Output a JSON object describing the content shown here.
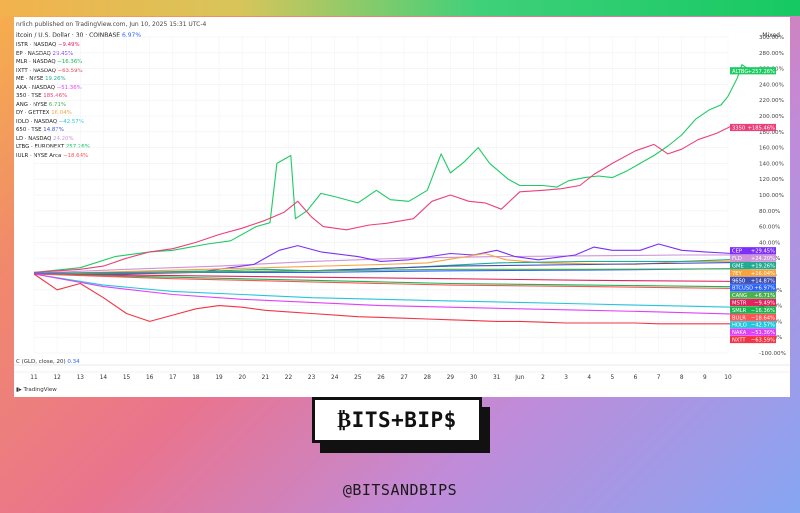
{
  "page": {
    "publisher_line": "nrlich published on TradingView.com, Jun 10, 2025 15:31 UTC-4",
    "main_symbol": "itcoin / U.S. Dollar · 30 · COINBASE",
    "main_symbol_change": "6.97%",
    "scale_mode": "Mixed",
    "oscillator_label": "C (GLD, close, 20)",
    "oscillator_value": "0.34",
    "footer_logo": "TradingView",
    "brand": "₿ITS+BIP$",
    "handle": "@BITSANDBIPS"
  },
  "chart_data": {
    "type": "line",
    "x_ticks": [
      "11",
      "12",
      "13",
      "14",
      "15",
      "16",
      "17",
      "18",
      "19",
      "20",
      "21",
      "22",
      "23",
      "24",
      "25",
      "26",
      "27",
      "28",
      "29",
      "30",
      "31",
      "Jun",
      "2",
      "3",
      "4",
      "5",
      "6",
      "7",
      "8",
      "9",
      "10"
    ],
    "y_ticks": [
      "300.00%",
      "280.00%",
      "260.00%",
      "240.00%",
      "220.00%",
      "200.00%",
      "180.00%",
      "160.00%",
      "140.00%",
      "120.00%",
      "100.00%",
      "80.00%",
      "60.00%",
      "40.00%",
      "20.00%",
      "0.00%",
      "-20.00%",
      "-40.00%",
      "-60.00%",
      "-80.00%",
      "-100.00%"
    ],
    "ylim": [
      -100,
      300
    ],
    "legend": [
      {
        "name": "ISTR · NASDAQ",
        "value": "−9.49%",
        "color": "#e0245e"
      },
      {
        "name": "EP · NASDAQ",
        "value": "29.45%",
        "color": "#7b2ff7"
      },
      {
        "name": "MLR · NASDAQ",
        "value": "−16.36%",
        "color": "#16b84f"
      },
      {
        "name": "IXTT · NASDAQ",
        "value": "−63.59%",
        "color": "#f23645"
      },
      {
        "name": "ME · NYSE",
        "value": "19.26%",
        "color": "#22ab94"
      },
      {
        "name": "AKA · NASDAQ",
        "value": "−51.36%",
        "color": "#e040fb"
      },
      {
        "name": "350 · TSE",
        "value": "185.46%",
        "color": "#ec407a"
      },
      {
        "name": "ANG · NYSE",
        "value": "6.71%",
        "color": "#4caf50"
      },
      {
        "name": "DY · GETTEX",
        "value": "16.04%",
        "color": "#f7a440"
      },
      {
        "name": "IOLO · NASDAQ",
        "value": "−42.57%",
        "color": "#26c6da"
      },
      {
        "name": "650 · TSE",
        "value": "14.87%",
        "color": "#3f51b5"
      },
      {
        "name": "LD · NASDAQ",
        "value": "24.20%",
        "color": "#ce93d8"
      },
      {
        "name": "LTBG · EURONEXT",
        "value": "257.26%",
        "color": "#00c853"
      },
      {
        "name": "IULR · NYSE Arca",
        "value": "−18.64%",
        "color": "#ff5252"
      }
    ],
    "series": [
      {
        "name": "ALTBG",
        "label": "ALTBG",
        "label_value": "+257.26%",
        "color": "#1ecb62",
        "final": 257.26,
        "points": [
          [
            0,
            2
          ],
          [
            2,
            8
          ],
          [
            3.5,
            22
          ],
          [
            5,
            28
          ],
          [
            6,
            30
          ],
          [
            7.5,
            38
          ],
          [
            8.5,
            42
          ],
          [
            9.6,
            60
          ],
          [
            10.2,
            65
          ],
          [
            10.5,
            140
          ],
          [
            11.1,
            150
          ],
          [
            11.3,
            70
          ],
          [
            11.8,
            80
          ],
          [
            12.4,
            102
          ],
          [
            13,
            98
          ],
          [
            14,
            90
          ],
          [
            14.8,
            106
          ],
          [
            15.4,
            94
          ],
          [
            16.2,
            92
          ],
          [
            17,
            106
          ],
          [
            17.6,
            152
          ],
          [
            18,
            128
          ],
          [
            18.6,
            142
          ],
          [
            19.2,
            160
          ],
          [
            19.7,
            140
          ],
          [
            20.5,
            120
          ],
          [
            21,
            112
          ],
          [
            22,
            112
          ],
          [
            22.6,
            110
          ],
          [
            23.1,
            118
          ],
          [
            23.8,
            122
          ],
          [
            24.4,
            124
          ],
          [
            25,
            122
          ],
          [
            25.6,
            130
          ],
          [
            26.2,
            140
          ],
          [
            26.8,
            150
          ],
          [
            27.4,
            162
          ],
          [
            28,
            176
          ],
          [
            28.6,
            196
          ],
          [
            29.2,
            208
          ],
          [
            29.7,
            214
          ],
          [
            30,
            225
          ],
          [
            30.4,
            248
          ],
          [
            30.6,
            265
          ],
          [
            31,
            257.26
          ]
        ]
      },
      {
        "name": "3350",
        "label": "3350",
        "label_value": "+185.46%",
        "color": "#ec407a",
        "final": 185.46,
        "points": [
          [
            0,
            2
          ],
          [
            2,
            6
          ],
          [
            3,
            10
          ],
          [
            4,
            20
          ],
          [
            5,
            28
          ],
          [
            6,
            32
          ],
          [
            7,
            40
          ],
          [
            8,
            50
          ],
          [
            9,
            58
          ],
          [
            10,
            68
          ],
          [
            10.8,
            78
          ],
          [
            11.4,
            92
          ],
          [
            12,
            72
          ],
          [
            12.5,
            60
          ],
          [
            13.5,
            56
          ],
          [
            14.5,
            62
          ],
          [
            15.2,
            64
          ],
          [
            16.4,
            70
          ],
          [
            17.2,
            92
          ],
          [
            18,
            100
          ],
          [
            18.8,
            92
          ],
          [
            19.5,
            90
          ],
          [
            20.2,
            82
          ],
          [
            21,
            104
          ],
          [
            22,
            106
          ],
          [
            22.8,
            108
          ],
          [
            23.6,
            112
          ],
          [
            24.2,
            126
          ],
          [
            25,
            140
          ],
          [
            26,
            156
          ],
          [
            26.8,
            164
          ],
          [
            27.4,
            152
          ],
          [
            28,
            158
          ],
          [
            28.7,
            170
          ],
          [
            29.5,
            178
          ],
          [
            30.2,
            188
          ],
          [
            31,
            185.46
          ]
        ]
      },
      {
        "name": "FLD",
        "label": "FLD",
        "label_value": "+24.20%",
        "color": "#ce93d8",
        "final": 24.2,
        "points": [
          [
            0,
            1
          ],
          [
            4,
            6
          ],
          [
            8,
            10
          ],
          [
            12,
            16
          ],
          [
            16,
            20
          ],
          [
            20,
            22
          ],
          [
            24,
            23
          ],
          [
            28,
            24
          ],
          [
            31,
            24.2
          ]
        ]
      },
      {
        "name": "CEP",
        "label": "CEP",
        "label_value": "+29.45%",
        "color": "#7b2ff7",
        "final": 29.45,
        "points": [
          [
            0,
            0
          ],
          [
            4,
            0
          ],
          [
            7,
            2
          ],
          [
            9.5,
            12
          ],
          [
            10.6,
            30
          ],
          [
            11.4,
            36
          ],
          [
            12.4,
            28
          ],
          [
            14,
            22
          ],
          [
            15,
            16
          ],
          [
            16.2,
            18
          ],
          [
            18,
            26
          ],
          [
            19,
            24
          ],
          [
            20,
            30
          ],
          [
            20.8,
            22
          ],
          [
            21.8,
            18
          ],
          [
            23.4,
            24
          ],
          [
            24.2,
            34
          ],
          [
            25,
            30
          ],
          [
            26.2,
            30
          ],
          [
            27,
            38
          ],
          [
            28,
            30
          ],
          [
            29,
            28
          ],
          [
            30.2,
            26
          ],
          [
            31,
            29.45
          ]
        ]
      },
      {
        "name": "7EY",
        "label": "7EY",
        "label_value": "+16.04%",
        "color": "#f7a440",
        "final": 16.04,
        "points": [
          [
            0,
            0
          ],
          [
            5,
            4
          ],
          [
            10,
            8
          ],
          [
            15,
            12
          ],
          [
            17,
            14
          ],
          [
            19.5,
            26
          ],
          [
            20.4,
            18
          ],
          [
            22,
            14
          ],
          [
            26,
            12
          ],
          [
            28,
            16
          ],
          [
            31,
            16.04
          ]
        ]
      },
      {
        "name": "GME",
        "label": "GME",
        "label_value": "+19.26%",
        "color": "#22ab94",
        "final": 19.26,
        "points": [
          [
            0,
            0
          ],
          [
            4,
            2
          ],
          [
            8,
            4
          ],
          [
            10,
            6
          ],
          [
            12,
            4
          ],
          [
            16,
            8
          ],
          [
            20,
            14
          ],
          [
            24,
            16
          ],
          [
            28,
            16
          ],
          [
            31,
            19.26
          ]
        ]
      },
      {
        "name": "9650",
        "label": "9650",
        "label_value": "+14.87%",
        "color": "#3f51b5",
        "final": 14.87,
        "points": [
          [
            0,
            0
          ],
          [
            6,
            2
          ],
          [
            12,
            4
          ],
          [
            18,
            10
          ],
          [
            24,
            12
          ],
          [
            31,
            14.87
          ]
        ]
      },
      {
        "name": "BTCUSD",
        "label": "BTCUSD",
        "label_value": "+6.97%",
        "color": "#2962ff",
        "final": 6.97,
        "points": [
          [
            0,
            1
          ],
          [
            6,
            2
          ],
          [
            12,
            2
          ],
          [
            18,
            4
          ],
          [
            24,
            5
          ],
          [
            31,
            6.97
          ]
        ]
      },
      {
        "name": "CANG",
        "label": "CANG",
        "label_value": "+6.71%",
        "color": "#4caf50",
        "final": 6.71,
        "points": [
          [
            0,
            0
          ],
          [
            6,
            2
          ],
          [
            12,
            4
          ],
          [
            18,
            6
          ],
          [
            24,
            6
          ],
          [
            31,
            6.71
          ]
        ]
      },
      {
        "name": "MSTR",
        "label": "MSTR",
        "label_value": "−9.49%",
        "color": "#e0245e",
        "final": -9.49,
        "points": [
          [
            0,
            0
          ],
          [
            6,
            -2
          ],
          [
            12,
            -4
          ],
          [
            18,
            -6
          ],
          [
            24,
            -8
          ],
          [
            31,
            -9.49
          ]
        ]
      },
      {
        "name": "SMLR",
        "label": "SMLR",
        "label_value": "−16.36%",
        "color": "#16b84f",
        "final": -16.36,
        "points": [
          [
            0,
            0
          ],
          [
            6,
            -4
          ],
          [
            12,
            -8
          ],
          [
            18,
            -12
          ],
          [
            24,
            -14
          ],
          [
            31,
            -16.36
          ]
        ]
      },
      {
        "name": "BULR",
        "label": "BULR",
        "label_value": "−18.64%",
        "color": "#ff5252",
        "final": -18.64,
        "points": [
          [
            0,
            0
          ],
          [
            6,
            -6
          ],
          [
            12,
            -10
          ],
          [
            18,
            -14
          ],
          [
            24,
            -16
          ],
          [
            31,
            -18.64
          ]
        ]
      },
      {
        "name": "HOLO",
        "label": "HOLO",
        "label_value": "−42.57%",
        "color": "#26c6da",
        "final": -42.57,
        "points": [
          [
            0,
            0
          ],
          [
            3,
            -14
          ],
          [
            6,
            -22
          ],
          [
            9,
            -26
          ],
          [
            12,
            -30
          ],
          [
            15,
            -32
          ],
          [
            18,
            -34
          ],
          [
            21,
            -36
          ],
          [
            24,
            -38
          ],
          [
            27,
            -40
          ],
          [
            31,
            -42.57
          ]
        ]
      },
      {
        "name": "NAKA",
        "label": "NAKA",
        "label_value": "−51.36%",
        "color": "#e040fb",
        "final": -51.36,
        "points": [
          [
            0,
            0
          ],
          [
            3,
            -16
          ],
          [
            6,
            -26
          ],
          [
            9,
            -32
          ],
          [
            12,
            -36
          ],
          [
            15,
            -40
          ],
          [
            18,
            -42
          ],
          [
            21,
            -44
          ],
          [
            24,
            -46
          ],
          [
            27,
            -48
          ],
          [
            31,
            -51.36
          ]
        ]
      },
      {
        "name": "NXTT",
        "label": "NXTT",
        "label_value": "−63.59%",
        "color": "#f23645",
        "final": -63.59,
        "points": [
          [
            0,
            0
          ],
          [
            1,
            -20
          ],
          [
            2,
            -12
          ],
          [
            3,
            -30
          ],
          [
            4,
            -50
          ],
          [
            5,
            -60
          ],
          [
            6,
            -52
          ],
          [
            7,
            -44
          ],
          [
            8,
            -40
          ],
          [
            9,
            -42
          ],
          [
            10,
            -46
          ],
          [
            11,
            -48
          ],
          [
            12,
            -50
          ],
          [
            13,
            -52
          ],
          [
            14,
            -54
          ],
          [
            15,
            -55
          ],
          [
            16,
            -56
          ],
          [
            17,
            -57
          ],
          [
            18,
            -58
          ],
          [
            19,
            -59
          ],
          [
            20,
            -60
          ],
          [
            21,
            -60
          ],
          [
            22,
            -61
          ],
          [
            23,
            -62
          ],
          [
            24,
            -62
          ],
          [
            25,
            -62
          ],
          [
            26,
            -62
          ],
          [
            27,
            -63
          ],
          [
            28,
            -63
          ],
          [
            29,
            -63
          ],
          [
            30,
            -63
          ],
          [
            31,
            -63.59
          ]
        ]
      }
    ]
  }
}
